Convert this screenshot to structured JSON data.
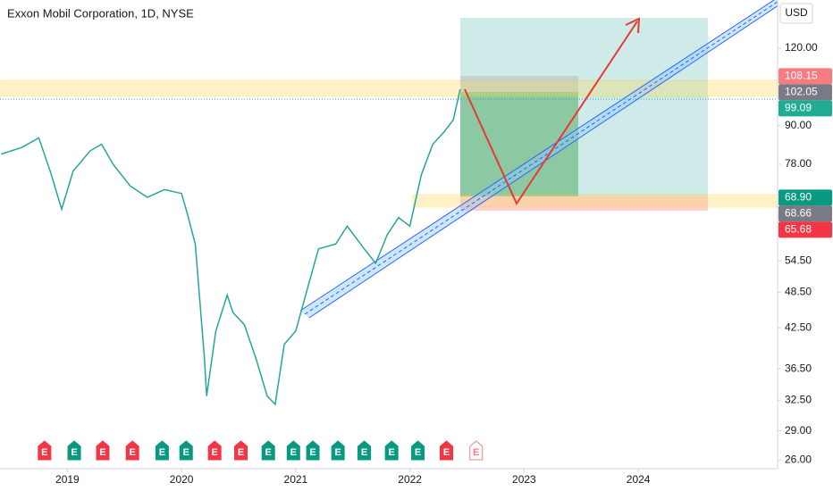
{
  "chart_data": {
    "type": "line",
    "title": "Exxon Mobil Corporation, 1D, NYSE",
    "currency": "USD",
    "log_scale": true,
    "color": "#26a69a",
    "x": [
      2018.42,
      2018.6,
      2018.75,
      2018.85,
      2018.95,
      2019.05,
      2019.2,
      2019.3,
      2019.4,
      2019.55,
      2019.7,
      2019.85,
      2020.0,
      2020.05,
      2020.12,
      2020.2,
      2020.22,
      2020.3,
      2020.4,
      2020.45,
      2020.55,
      2020.65,
      2020.75,
      2020.82,
      2020.9,
      2021.0,
      2021.1,
      2021.2,
      2021.35,
      2021.45,
      2021.6,
      2021.7,
      2021.8,
      2021.9,
      2022.0,
      2022.1,
      2022.2,
      2022.3,
      2022.38,
      2022.44
    ],
    "values": [
      81,
      83,
      86,
      76,
      66,
      76,
      82,
      84,
      78,
      72,
      69,
      71,
      70,
      65,
      58,
      38,
      33,
      42,
      48,
      45,
      43,
      38,
      33,
      32,
      40,
      42,
      49,
      57,
      58,
      62,
      57,
      54,
      60,
      64,
      62,
      75,
      84,
      88,
      92,
      103
    ],
    "xlim": [
      2018.41,
      2025.22
    ],
    "xticks": [
      2019,
      2020,
      2021,
      2022,
      2023,
      2024
    ],
    "ylim": [
      25.2,
      143.5
    ],
    "yticks": [
      {
        "value": 26,
        "label": "26.00"
      },
      {
        "value": 29,
        "label": "29.00"
      },
      {
        "value": 32.5,
        "label": "32.50"
      },
      {
        "value": 36.5,
        "label": "36.50"
      },
      {
        "value": 42.5,
        "label": "42.50"
      },
      {
        "value": 48.5,
        "label": "48.50"
      },
      {
        "value": 54.5,
        "label": "54.50"
      },
      {
        "value": 78,
        "label": "78.00"
      },
      {
        "value": 90,
        "label": "90.00"
      },
      {
        "value": 120,
        "label": "120.00"
      }
    ],
    "price_labels": [
      {
        "value": 108.15,
        "label": "108.15",
        "color": "#f77c80"
      },
      {
        "value": 102.05,
        "label": "102.05",
        "color": "#787b86"
      },
      {
        "value": 99.09,
        "label": "99.09",
        "color": "#22ab94"
      },
      {
        "value": 68.9,
        "label": "68.90",
        "color": "#089981"
      },
      {
        "value": 68.66,
        "label": "68.66",
        "color": "#787b86"
      },
      {
        "value": 65.68,
        "label": "65.68",
        "color": "#f23645"
      }
    ],
    "earnings": {
      "label": "E",
      "x": [
        2018.8,
        2019.06,
        2019.31,
        2019.57,
        2019.83,
        2020.04,
        2020.29,
        2020.52,
        2020.76,
        2020.98,
        2021.15,
        2021.37,
        2021.6,
        2021.84,
        2022.07,
        2022.32,
        2022.58
      ],
      "colors": [
        "#f23645",
        "#089981",
        "#f23645",
        "#f23645",
        "#089981",
        "#089981",
        "#f23645",
        "#f23645",
        "#089981",
        "#089981",
        "#089981",
        "#089981",
        "#089981",
        "#089981",
        "#089981",
        "#f23645",
        "#b2b5be"
      ]
    }
  }
}
